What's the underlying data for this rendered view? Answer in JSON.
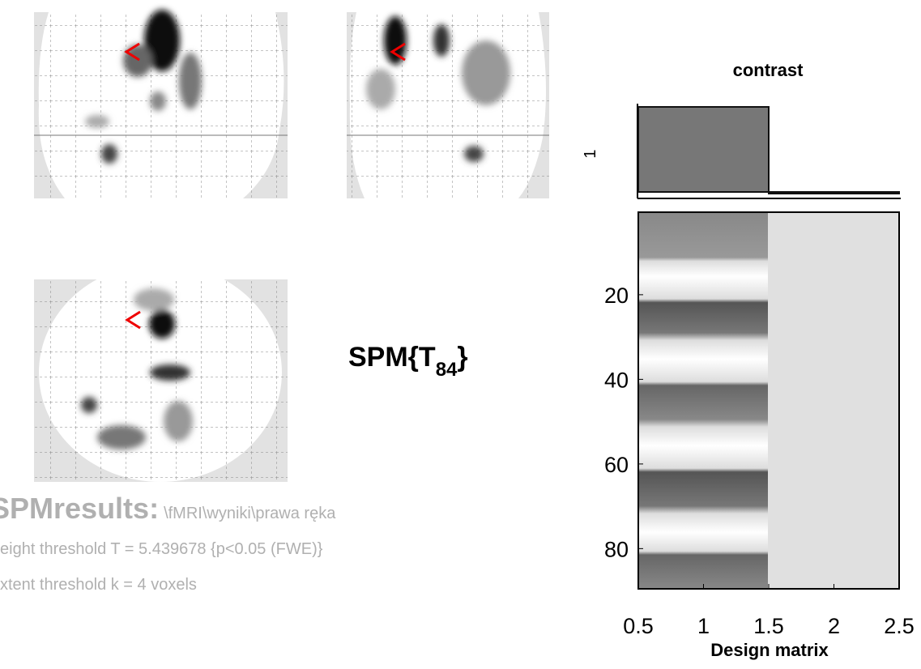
{
  "stat_title": {
    "prefix": "SPM{T",
    "df": "84",
    "suffix": "}"
  },
  "results": {
    "heading": "SPMresults:",
    "path": "\\fMRI\\wyniki\\prawa ręka",
    "height_threshold": "eight threshold T = 5.439678  {p<0.05 (FWE)}",
    "extent_threshold": "xtent threshold k = 4 voxels"
  },
  "contrast": {
    "title": "contrast",
    "label": "1",
    "weights": [
      1,
      0
    ]
  },
  "design_matrix": {
    "xlabel": "Design matrix",
    "xlim": [
      0.5,
      2.5
    ],
    "ylim": [
      0.5,
      89.5
    ],
    "xticks": [
      0.5,
      1,
      1.5,
      2,
      2.5
    ],
    "yticks": [
      20,
      40,
      60,
      80
    ]
  }
}
